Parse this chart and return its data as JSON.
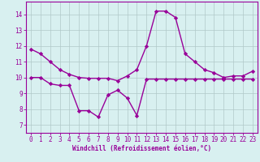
{
  "line1_x": [
    0,
    1,
    2,
    3,
    4,
    5,
    6,
    7,
    8,
    9,
    10,
    11,
    12,
    13,
    14,
    15,
    16,
    17,
    18,
    19,
    20,
    21,
    22,
    23
  ],
  "line1_y": [
    11.8,
    11.5,
    11.0,
    10.5,
    10.2,
    10.0,
    9.95,
    9.95,
    9.95,
    9.8,
    10.1,
    10.5,
    12.0,
    14.2,
    14.2,
    13.8,
    11.5,
    11.0,
    10.5,
    10.3,
    10.0,
    10.1,
    10.1,
    10.4
  ],
  "line2_x": [
    0,
    1,
    2,
    3,
    4,
    5,
    6,
    7,
    8,
    9,
    10,
    11,
    12,
    13,
    14,
    15,
    16,
    17,
    18,
    19,
    20,
    21,
    22,
    23
  ],
  "line2_y": [
    10.0,
    10.0,
    9.6,
    9.5,
    9.5,
    7.9,
    7.9,
    7.5,
    8.9,
    9.2,
    8.7,
    7.6,
    9.9,
    9.9,
    9.9,
    9.9,
    9.9,
    9.9,
    9.9,
    9.9,
    9.9,
    9.9,
    9.9,
    9.9
  ],
  "line_color": "#990099",
  "bg_color": "#d8f0f0",
  "grid_color": "#b0c8c8",
  "xlabel": "Windchill (Refroidissement éolien,°C)",
  "ylim": [
    6.5,
    14.8
  ],
  "xlim": [
    -0.5,
    23.5
  ],
  "yticks": [
    7,
    8,
    9,
    10,
    11,
    12,
    13,
    14
  ],
  "xticks": [
    0,
    1,
    2,
    3,
    4,
    5,
    6,
    7,
    8,
    9,
    10,
    11,
    12,
    13,
    14,
    15,
    16,
    17,
    18,
    19,
    20,
    21,
    22,
    23
  ],
  "marker": "D",
  "markersize": 2.2,
  "linewidth": 1.0,
  "tick_fontsize": 5.5,
  "xlabel_fontsize": 5.5
}
